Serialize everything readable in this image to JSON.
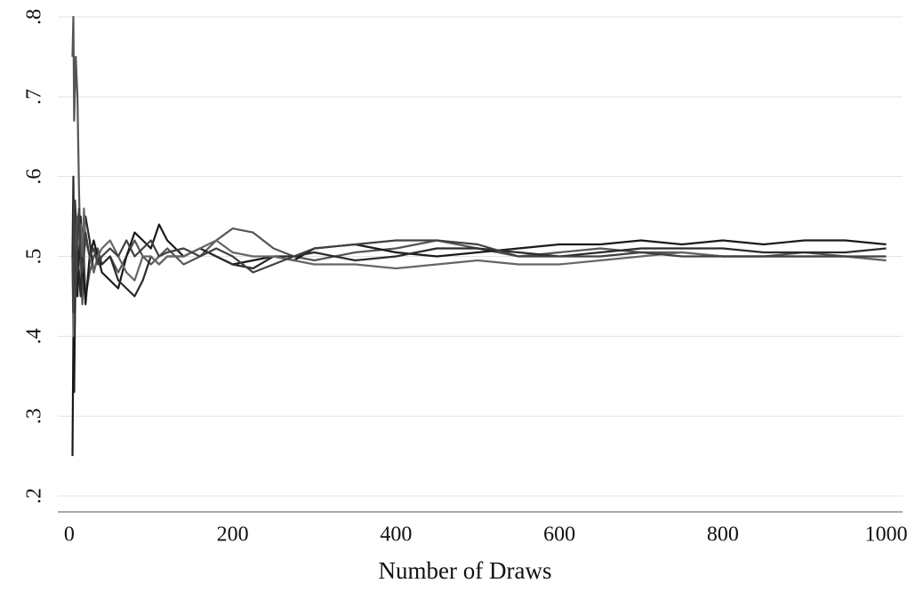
{
  "chart_data": {
    "type": "line",
    "x_label": "Number of Draws",
    "x": [
      4,
      5,
      6,
      7,
      8,
      10,
      12,
      14,
      16,
      18,
      20,
      25,
      30,
      35,
      40,
      50,
      60,
      70,
      80,
      90,
      100,
      110,
      120,
      140,
      160,
      180,
      200,
      225,
      250,
      275,
      300,
      350,
      400,
      450,
      500,
      550,
      600,
      650,
      700,
      750,
      800,
      850,
      900,
      950,
      1000
    ],
    "series": [
      {
        "color": "#555555",
        "values": [
          0.75,
          0.8,
          0.67,
          0.71,
          0.75,
          0.7,
          0.58,
          0.5,
          0.44,
          0.5,
          0.45,
          0.48,
          0.5,
          0.51,
          0.49,
          0.5,
          0.48,
          0.5,
          0.52,
          0.5,
          0.49,
          0.5,
          0.51,
          0.49,
          0.5,
          0.52,
          0.535,
          0.53,
          0.51,
          0.5,
          0.495,
          0.505,
          0.51,
          0.52,
          0.51,
          0.5,
          0.505,
          0.51,
          0.505,
          0.505,
          0.5,
          0.5,
          0.505,
          0.5,
          0.495
        ]
      },
      {
        "color": "#1a1a1a",
        "values": [
          0.25,
          0.4,
          0.33,
          0.43,
          0.5,
          0.45,
          0.5,
          0.55,
          0.5,
          0.47,
          0.44,
          0.5,
          0.52,
          0.5,
          0.48,
          0.47,
          0.46,
          0.5,
          0.53,
          0.52,
          0.51,
          0.54,
          0.52,
          0.5,
          0.51,
          0.5,
          0.49,
          0.495,
          0.5,
          0.495,
          0.51,
          0.515,
          0.505,
          0.5,
          0.505,
          0.51,
          0.515,
          0.515,
          0.52,
          0.515,
          0.52,
          0.515,
          0.52,
          0.52,
          0.515
        ]
      },
      {
        "color": "#2b2b2b",
        "values": [
          0.5,
          0.6,
          0.5,
          0.57,
          0.55,
          0.5,
          0.48,
          0.45,
          0.5,
          0.53,
          0.55,
          0.52,
          0.48,
          0.5,
          0.49,
          0.5,
          0.47,
          0.46,
          0.45,
          0.47,
          0.5,
          0.49,
          0.5,
          0.5,
          0.51,
          0.5,
          0.49,
          0.485,
          0.5,
          0.5,
          0.505,
          0.495,
          0.5,
          0.51,
          0.51,
          0.505,
          0.5,
          0.505,
          0.51,
          0.51,
          0.51,
          0.505,
          0.505,
          0.505,
          0.51
        ]
      },
      {
        "color": "#666666",
        "values": [
          0.5,
          0.4,
          0.5,
          0.45,
          0.5,
          0.55,
          0.52,
          0.54,
          0.5,
          0.56,
          0.52,
          0.5,
          0.48,
          0.5,
          0.51,
          0.52,
          0.5,
          0.48,
          0.47,
          0.5,
          0.5,
          0.49,
          0.5,
          0.5,
          0.51,
          0.52,
          0.505,
          0.5,
          0.5,
          0.495,
          0.49,
          0.49,
          0.485,
          0.49,
          0.495,
          0.49,
          0.49,
          0.495,
          0.5,
          0.505,
          0.5,
          0.5,
          0.5,
          0.5,
          0.495
        ]
      },
      {
        "color": "#404040",
        "values": [
          0.5,
          0.43,
          0.57,
          0.5,
          0.45,
          0.53,
          0.56,
          0.5,
          0.48,
          0.5,
          0.53,
          0.5,
          0.51,
          0.49,
          0.5,
          0.51,
          0.5,
          0.52,
          0.5,
          0.51,
          0.52,
          0.5,
          0.505,
          0.51,
          0.5,
          0.51,
          0.5,
          0.48,
          0.49,
          0.5,
          0.51,
          0.515,
          0.52,
          0.52,
          0.515,
          0.5,
          0.5,
          0.5,
          0.505,
          0.5,
          0.5,
          0.5,
          0.5,
          0.5,
          0.5
        ]
      }
    ],
    "xlim": [
      -14,
      1020
    ],
    "xticks": [
      0,
      200,
      400,
      600,
      800,
      1000
    ],
    "ylim": [
      0.18,
      0.8
    ],
    "yticks": [
      {
        "value": 0.2,
        "label": ".2"
      },
      {
        "value": 0.3,
        "label": ".3"
      },
      {
        "value": 0.4,
        "label": ".4"
      },
      {
        "value": 0.5,
        "label": ".5"
      },
      {
        "value": 0.6,
        "label": ".6"
      },
      {
        "value": 0.7,
        "label": ".7"
      },
      {
        "value": 0.8,
        "label": ".8"
      }
    ],
    "grid": true
  }
}
